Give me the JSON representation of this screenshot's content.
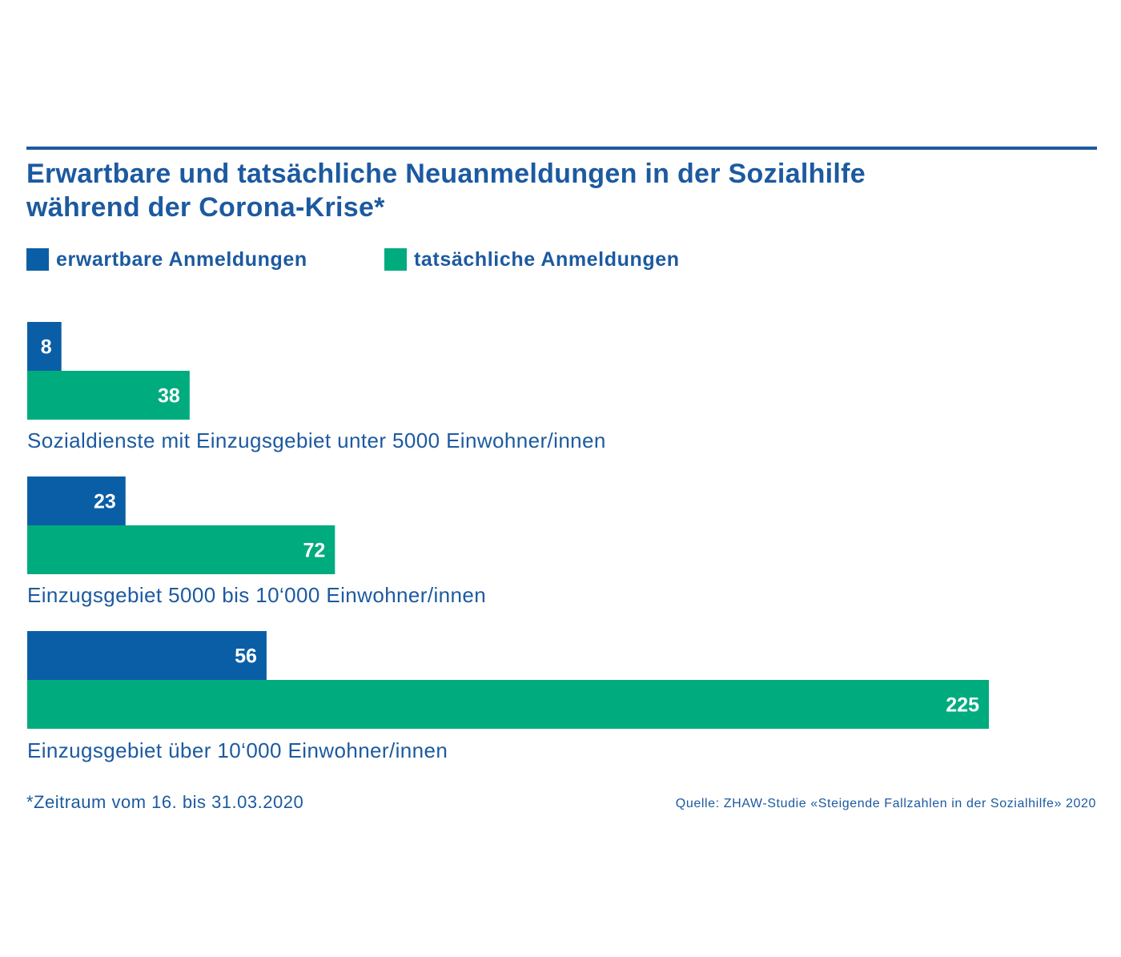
{
  "colors": {
    "accent": "#1c5aa0",
    "expected": "#0a5ea6",
    "actual": "#00ab7e",
    "text": "#1c5aa0"
  },
  "chart_data": {
    "type": "bar",
    "orientation": "horizontal",
    "title": "Erwartbare und tatsächliche Neuanmeldungen in der Sozialhilfe während der Corona-Krise*",
    "title_lines": [
      "Erwartbare und tatsächliche Neuanmeldungen in der Sozialhilfe",
      "während der Corona-Krise*"
    ],
    "legend_position": "top-left",
    "grid": false,
    "xlim": [
      0,
      225
    ],
    "categories": [
      "Sozialdienste mit Einzugsgebiet unter 5000 Einwohner/innen",
      "Einzugsgebiet 5000 bis 10‘000 Einwohner/innen",
      "Einzugsgebiet über 10‘000 Einwohner/innen"
    ],
    "series": [
      {
        "name": "erwartbare Anmeldungen",
        "color": "#0a5ea6",
        "values": [
          8,
          23,
          56
        ]
      },
      {
        "name": "tatsächliche Anmeldungen",
        "color": "#00ab7e",
        "values": [
          38,
          72,
          225
        ]
      }
    ],
    "footnote": "*Zeitraum vom 16. bis 31.03.2020",
    "source": "Quelle:  ZHAW-Studie «Steigende Fallzahlen in der Sozialhilfe» 2020"
  }
}
